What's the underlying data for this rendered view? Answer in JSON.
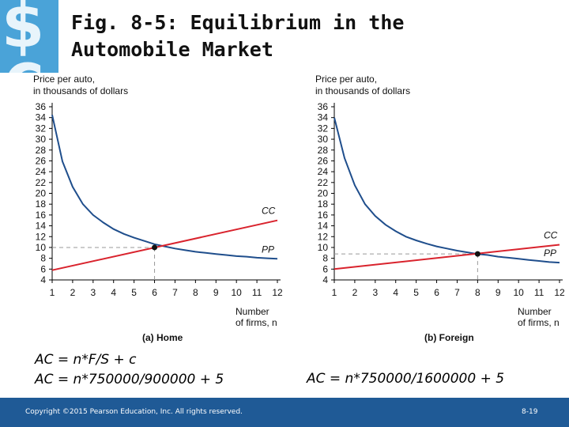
{
  "title": {
    "line1": "Fig. 8-5: Equilibrium in the",
    "line2": "Automobile Market"
  },
  "logo": {
    "icon": "dollar-euro-icon",
    "text": "$€",
    "color": "#4aa3d8"
  },
  "colors": {
    "pp": "#1f4e8c",
    "cc": "#d9232d",
    "footer": "#1f5a96",
    "dashed": "#999999"
  },
  "chart_data": [
    {
      "type": "line",
      "caption": "(a) Home",
      "ylabel": "Price per auto, in thousands of dollars",
      "xlabel": "Number of firms, n",
      "x_ticks": [
        "1",
        "2",
        "3",
        "4",
        "5",
        "6",
        "7",
        "8",
        "9",
        "10",
        "11",
        "12"
      ],
      "y_ticks": [
        "4",
        "6",
        "8",
        "10",
        "12",
        "14",
        "16",
        "18",
        "20",
        "22",
        "24",
        "26",
        "28",
        "30",
        "32",
        "34",
        "36"
      ],
      "xlim": [
        1,
        12
      ],
      "ylim": [
        4,
        36
      ],
      "series": [
        {
          "name": "PP",
          "shape": "hyperbola",
          "values": [
            [
              1.0,
              34.5
            ],
            [
              1.5,
              25.9
            ],
            [
              2.0,
              21.2
            ],
            [
              2.5,
              18.0
            ],
            [
              3.0,
              16.0
            ],
            [
              3.5,
              14.6
            ],
            [
              4.0,
              13.4
            ],
            [
              4.5,
              12.5
            ],
            [
              5.0,
              11.8
            ],
            [
              5.5,
              11.2
            ],
            [
              6.0,
              10.6
            ],
            [
              6.5,
              10.2
            ],
            [
              7.0,
              9.8
            ],
            [
              7.5,
              9.5
            ],
            [
              8.0,
              9.2
            ],
            [
              8.5,
              9.0
            ],
            [
              9.0,
              8.8
            ],
            [
              9.5,
              8.6
            ],
            [
              10.0,
              8.4
            ],
            [
              10.5,
              8.3
            ],
            [
              11.0,
              8.1
            ],
            [
              11.5,
              8.0
            ],
            [
              12.0,
              7.9
            ]
          ]
        },
        {
          "name": "CC",
          "shape": "linear",
          "values": [
            [
              1,
              5.8
            ],
            [
              12,
              15.0
            ]
          ]
        }
      ],
      "equilibrium": {
        "n": 6,
        "price": 10
      }
    },
    {
      "type": "line",
      "caption": "(b) Foreign",
      "ylabel": "Price per auto, in thousands of dollars",
      "xlabel": "Number of firms, n",
      "x_ticks": [
        "1",
        "2",
        "3",
        "4",
        "5",
        "6",
        "7",
        "8",
        "9",
        "10",
        "11",
        "12"
      ],
      "y_ticks": [
        "4",
        "6",
        "8",
        "10",
        "12",
        "14",
        "16",
        "18",
        "20",
        "22",
        "24",
        "26",
        "28",
        "30",
        "32",
        "34",
        "36"
      ],
      "xlim": [
        1,
        12
      ],
      "ylim": [
        4,
        36
      ],
      "series": [
        {
          "name": "PP",
          "shape": "hyperbola",
          "values": [
            [
              1.0,
              34.0
            ],
            [
              1.5,
              26.5
            ],
            [
              2.0,
              21.5
            ],
            [
              2.5,
              18.0
            ],
            [
              3.0,
              15.8
            ],
            [
              3.5,
              14.2
            ],
            [
              4.0,
              13.0
            ],
            [
              4.5,
              12.0
            ],
            [
              5.0,
              11.3
            ],
            [
              5.5,
              10.7
            ],
            [
              6.0,
              10.2
            ],
            [
              6.5,
              9.8
            ],
            [
              7.0,
              9.4
            ],
            [
              7.5,
              9.1
            ],
            [
              8.0,
              8.8
            ],
            [
              8.5,
              8.6
            ],
            [
              9.0,
              8.3
            ],
            [
              9.5,
              8.1
            ],
            [
              10.0,
              7.9
            ],
            [
              10.5,
              7.7
            ],
            [
              11.0,
              7.5
            ],
            [
              11.5,
              7.3
            ],
            [
              12.0,
              7.2
            ]
          ]
        },
        {
          "name": "CC",
          "shape": "linear",
          "values": [
            [
              1,
              6.0
            ],
            [
              12,
              10.5
            ]
          ]
        }
      ],
      "equilibrium": {
        "n": 8,
        "price": 8.8
      }
    }
  ],
  "formulas_a": {
    "line1": "AC = n*F/S + c",
    "line2": "AC = n*750000/900000 + 5"
  },
  "formulas_b": {
    "line1": "AC = n*750000/1600000 + 5"
  },
  "footer": {
    "copyright": "Copyright ©2015 Pearson Education, Inc. All rights reserved.",
    "slide_number": "8-19"
  }
}
